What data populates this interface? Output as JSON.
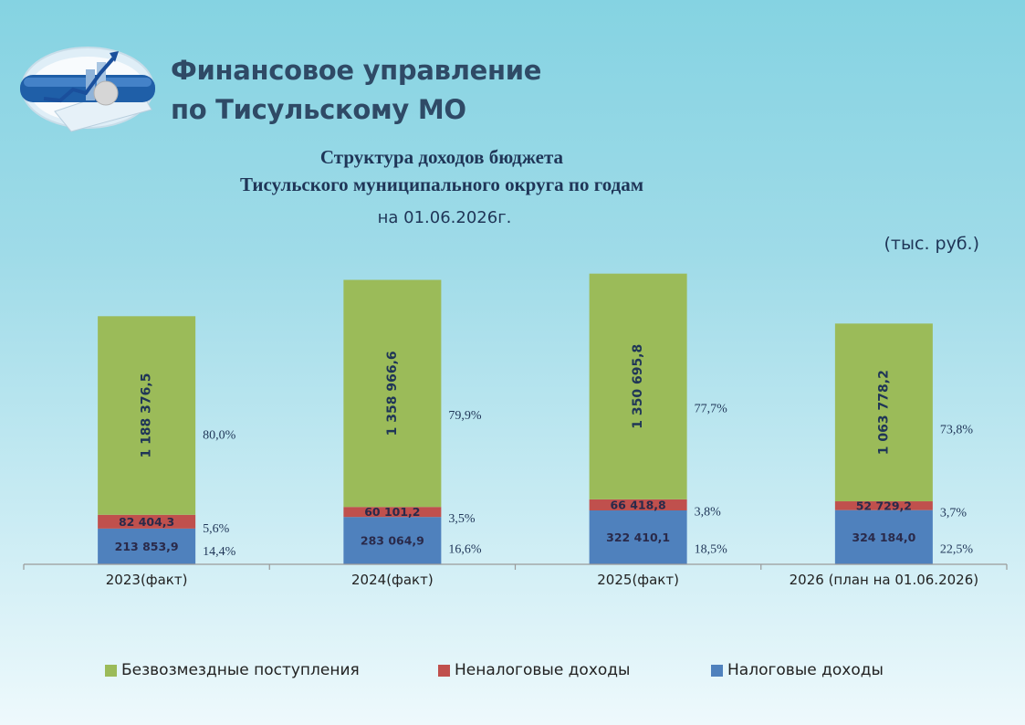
{
  "header": {
    "org_line1": "Финансовое управление",
    "org_line2": "по Тисульскому МО",
    "title_line1": "Структура доходов бюджета",
    "title_line2": "Тисульского муниципального округа по годам",
    "date": "на 01.06.2026г.",
    "units": "(тыс. руб.)"
  },
  "colors": {
    "free": "#9bbb59",
    "nontax": "#c0504d",
    "tax": "#4f81bd"
  },
  "chart_data": {
    "type": "bar",
    "stacked": true,
    "categories": [
      "2023(факт)",
      "2024(факт)",
      "2025(факт)",
      "2026 (план на 01.06.2026)"
    ],
    "series": [
      {
        "key": "tax",
        "name": "Налоговые доходы",
        "values": [
          213853.9,
          283064.9,
          322410.1,
          324184.0
        ],
        "labels": [
          "213 853,9",
          "283 064,9",
          "322 410,1",
          "324 184,0"
        ],
        "percents": [
          "14,4%",
          "16,6%",
          "18,5%",
          "22,5%"
        ]
      },
      {
        "key": "nontax",
        "name": "Неналоговые доходы",
        "values": [
          82404.3,
          60101.2,
          66418.8,
          52729.2
        ],
        "labels": [
          "82 404,3",
          "60 101,2",
          "66 418,8",
          "52 729,2"
        ],
        "percents": [
          "5,6%",
          "3,5%",
          "3,8%",
          "3,7%"
        ]
      },
      {
        "key": "free",
        "name": "Безвозмездные поступления",
        "values": [
          1188376.5,
          1358966.6,
          1350695.8,
          1063778.2
        ],
        "labels": [
          "1 188 376,5",
          "1 358 966,6",
          "1 350 695,8",
          "1 063 778,2"
        ],
        "percents": [
          "80,0%",
          "79,9%",
          "77,7%",
          "73,8%"
        ]
      }
    ],
    "legend": [
      "Безвозмездные поступления",
      "Неналоговые доходы",
      "Налоговые доходы"
    ],
    "legend_position": "bottom"
  }
}
